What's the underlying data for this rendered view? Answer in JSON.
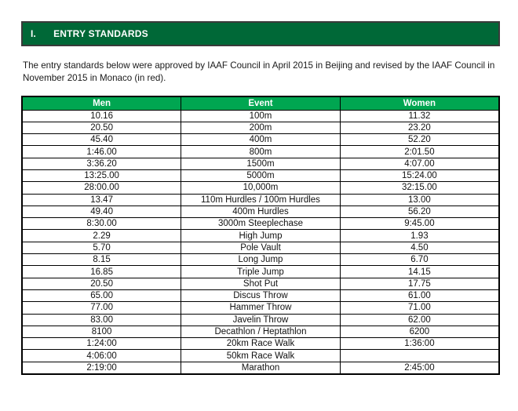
{
  "page": {
    "section_number": "I.",
    "section_title": "ENTRY STANDARDS",
    "intro_text": "The entry standards below were approved by IAAF Council in April 2015 in Beijing and revised by the IAAF Council in November 2015 in Monaco (in red)."
  },
  "colors": {
    "dark_green": "#006837",
    "bright_green": "#00A651",
    "revised_red": "#D42B2B",
    "no_standard_gray": "#BFBFBF"
  },
  "table": {
    "headers": [
      "Men",
      "Event",
      "Women"
    ],
    "rows": [
      {
        "men": "10.16",
        "men_red": false,
        "event": "100m",
        "women": "11.32",
        "women_red": false,
        "women_gray": false
      },
      {
        "men": "20.50",
        "men_red": false,
        "event": "200m",
        "women": "23.20",
        "women_red": false,
        "women_gray": false
      },
      {
        "men": "45.40",
        "men_red": false,
        "event": "400m",
        "women": "52.20",
        "women_red": true,
        "women_gray": false
      },
      {
        "men": "1:46.00",
        "men_red": true,
        "event": "800m",
        "women": "2:01.50",
        "women_red": true,
        "women_gray": false
      },
      {
        "men": "3:36.20",
        "men_red": true,
        "event": "1500m",
        "women": "4:07.00",
        "women_red": true,
        "women_gray": false
      },
      {
        "men": "13:25.00",
        "men_red": false,
        "event": "5000m",
        "women": "15:24.00",
        "women_red": true,
        "women_gray": false
      },
      {
        "men": "28:00.00",
        "men_red": false,
        "event": "10,000m",
        "women": "32:15.00",
        "women_red": false,
        "women_gray": false
      },
      {
        "men": "13.47",
        "men_red": false,
        "event": "110m Hurdles / 100m Hurdles",
        "women": "13.00",
        "women_red": false,
        "women_gray": false
      },
      {
        "men": "49.40",
        "men_red": false,
        "event": "400m Hurdles",
        "women": "56.20",
        "women_red": false,
        "women_gray": false
      },
      {
        "men": "8:30.00",
        "men_red": true,
        "event": "3000m Steeplechase",
        "women": "9:45.00",
        "women_red": false,
        "women_gray": false
      },
      {
        "men": "2.29",
        "men_red": false,
        "event": "High Jump",
        "women": "1.93",
        "women_red": true,
        "women_gray": false
      },
      {
        "men": "5.70",
        "men_red": false,
        "event": "Pole Vault",
        "women": "4.50",
        "women_red": false,
        "women_gray": false
      },
      {
        "men": "8.15",
        "men_red": false,
        "event": "Long Jump",
        "women": "6.70",
        "women_red": false,
        "women_gray": false
      },
      {
        "men": "16.85",
        "men_red": true,
        "event": "Triple Jump",
        "women": "14.15",
        "women_red": true,
        "women_gray": false
      },
      {
        "men": "20.50",
        "men_red": false,
        "event": "Shot Put",
        "women": "17.75",
        "women_red": true,
        "women_gray": false
      },
      {
        "men": "65.00",
        "men_red": true,
        "event": "Discus Throw",
        "women": "61.00",
        "women_red": false,
        "women_gray": false
      },
      {
        "men": "77.00",
        "men_red": true,
        "event": "Hammer Throw",
        "women": "71.00",
        "women_red": false,
        "women_gray": false
      },
      {
        "men": "83.00",
        "men_red": false,
        "event": "Javelin Throw",
        "women": "62.00",
        "women_red": false,
        "women_gray": false
      },
      {
        "men": "8100",
        "men_red": false,
        "event": "Decathlon / Heptathlon",
        "women": "6200",
        "women_red": false,
        "women_gray": false
      },
      {
        "men": "1:24:00",
        "men_red": false,
        "event": "20km Race Walk",
        "women": "1:36:00",
        "women_red": true,
        "women_gray": false
      },
      {
        "men": "4:06:00",
        "men_red": true,
        "event": "50km Race Walk",
        "women": "",
        "women_red": false,
        "women_gray": true
      },
      {
        "men": "2:19:00",
        "men_red": true,
        "event": "Marathon",
        "women": "2:45:00",
        "women_red": true,
        "women_gray": false
      }
    ]
  }
}
